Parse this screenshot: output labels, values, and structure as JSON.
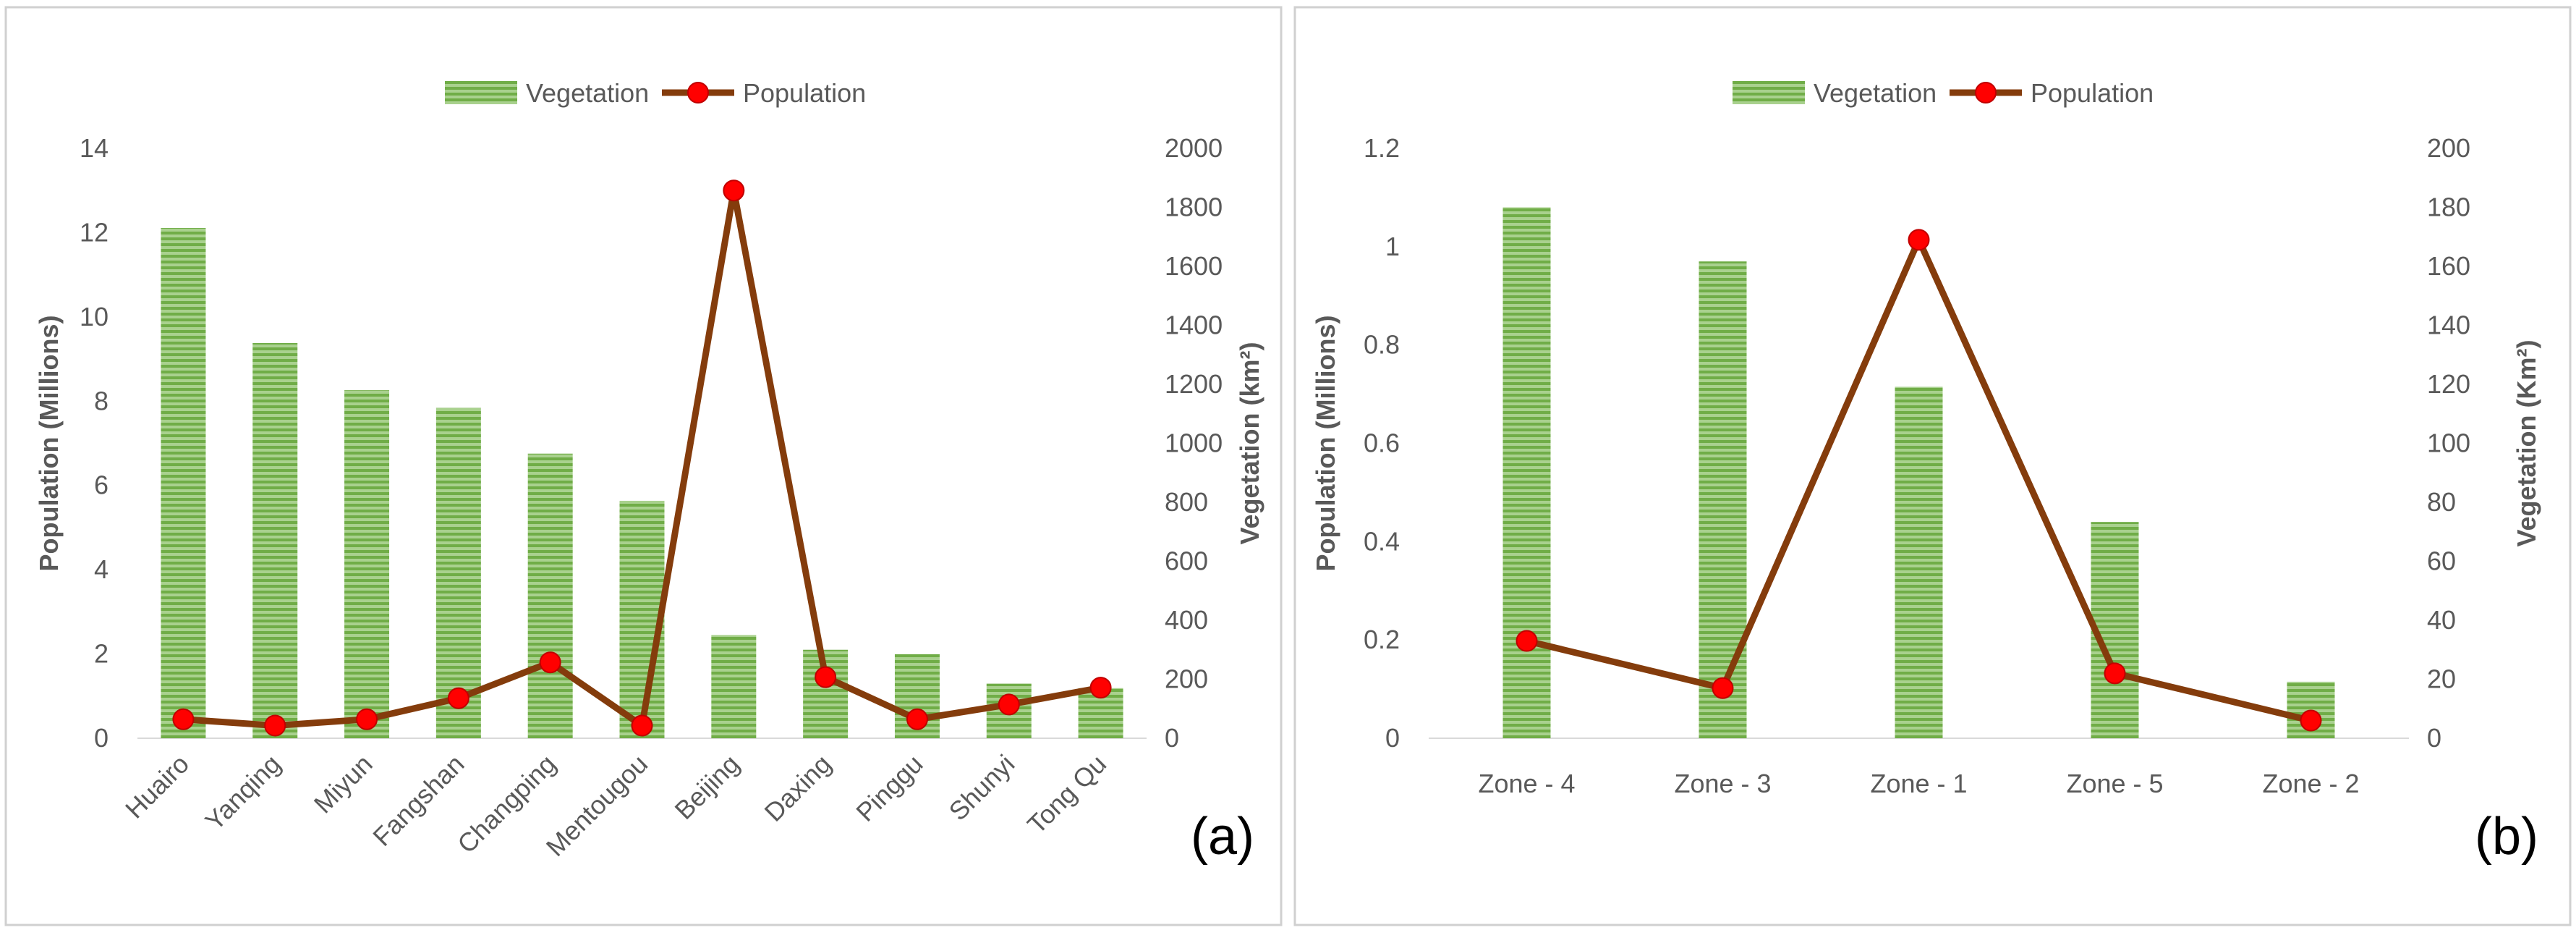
{
  "chart_data": [
    {
      "type": "bar+line",
      "panel_label": "(a)",
      "legend": {
        "placement": "top-center",
        "entries": [
          "Vegetation",
          "Population"
        ]
      },
      "categories": [
        "Huairo",
        "Yanqing",
        "Miyun",
        "Fangshan",
        "Changping",
        "Mentougou",
        "Beijing",
        "Daxing",
        "Pinggu",
        "Shunyi",
        "Tong Qu"
      ],
      "series": [
        {
          "name": "Vegetation",
          "kind": "bar",
          "axis": "right",
          "values": [
            1730,
            1340,
            1180,
            1120,
            965,
            805,
            350,
            300,
            285,
            185,
            170
          ]
        },
        {
          "name": "Population",
          "kind": "line",
          "axis": "left",
          "values": [
            0.45,
            0.3,
            0.45,
            0.95,
            1.8,
            0.3,
            13.0,
            1.45,
            0.45,
            0.8,
            1.2
          ]
        }
      ],
      "ylabel_left": "Population (Millions)",
      "ylabel_right": "Vegetation (km²)",
      "ylim_left": [
        0,
        14
      ],
      "yticks_left": [
        "0",
        "2",
        "4",
        "6",
        "8",
        "10",
        "12",
        "14"
      ],
      "ylim_right": [
        0,
        2000
      ],
      "yticks_right": [
        "0",
        "200",
        "400",
        "600",
        "800",
        "1000",
        "1200",
        "1400",
        "1600",
        "1800",
        "2000"
      ],
      "grid": false,
      "colors": {
        "bar": "#70ad47",
        "line": "#843c0c",
        "marker": "#ff0000"
      }
    },
    {
      "type": "bar+line",
      "panel_label": "(b)",
      "legend": {
        "placement": "top-center",
        "entries": [
          "Vegetation",
          "Population"
        ]
      },
      "categories": [
        "Zone - 4",
        "Zone - 3",
        "Zone - 1",
        "Zone - 5",
        "Zone - 2"
      ],
      "series": [
        {
          "name": "Vegetation",
          "kind": "bar",
          "axis": "left",
          "values": [
            1.08,
            0.97,
            0.715,
            0.44,
            0.115
          ]
        },
        {
          "name": "Population",
          "kind": "line",
          "axis": "right",
          "values": [
            33,
            17,
            169,
            22,
            6
          ]
        }
      ],
      "ylabel_left": "Population (Millions)",
      "ylabel_right": "Vegetation (Km²)",
      "ylim_left": [
        0,
        1.2
      ],
      "yticks_left": [
        "0",
        "0.2",
        "0.4",
        "0.6",
        "0.8",
        "1",
        "1.2"
      ],
      "ylim_right": [
        0,
        200
      ],
      "yticks_right": [
        "0",
        "20",
        "40",
        "60",
        "80",
        "100",
        "120",
        "140",
        "160",
        "180",
        "200"
      ],
      "grid": false,
      "colors": {
        "bar": "#70ad47",
        "line": "#843c0c",
        "marker": "#ff0000"
      }
    }
  ]
}
